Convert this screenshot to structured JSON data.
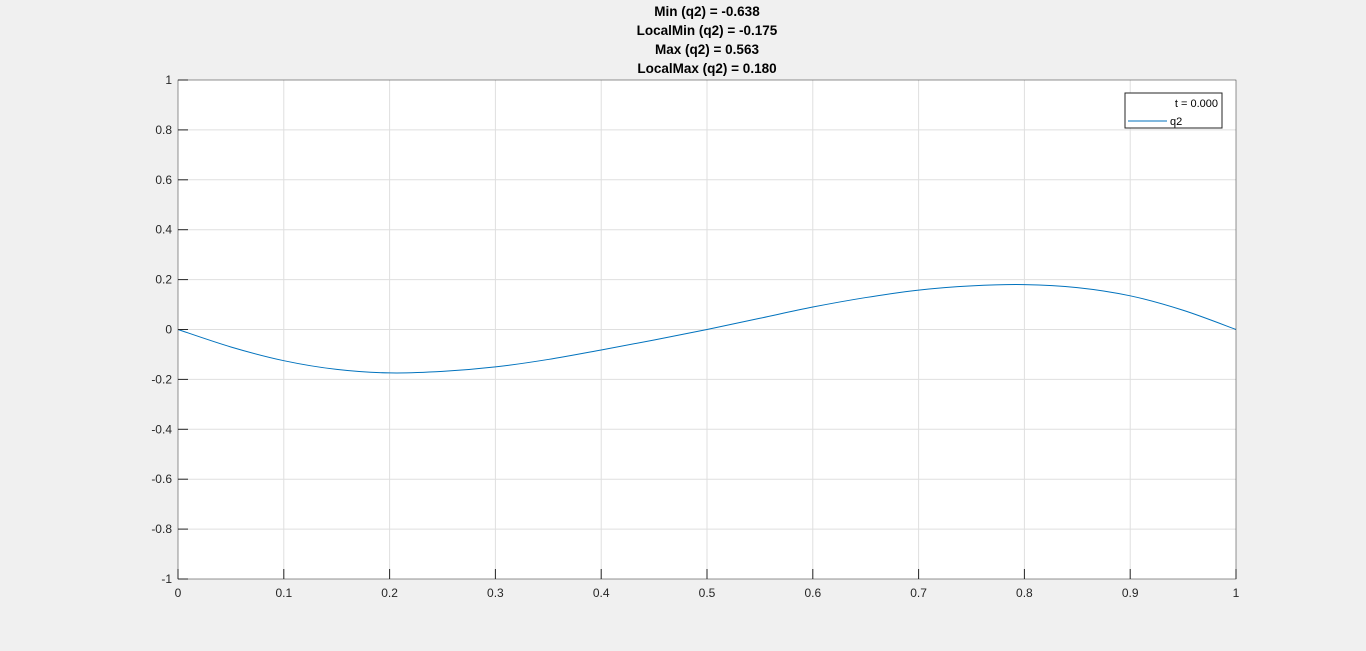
{
  "chart_data": {
    "type": "line",
    "title_lines": [
      "Min (q2) = -0.638",
      "LocalMin (q2) = -0.175",
      "Max (q2) = 0.563",
      "LocalMax (q2) = 0.180"
    ],
    "xlabel": "",
    "ylabel": "",
    "xlim": [
      0,
      1
    ],
    "ylim": [
      -1,
      1
    ],
    "xticks": [
      0,
      0.1,
      0.2,
      0.3,
      0.4,
      0.5,
      0.6,
      0.7,
      0.8,
      0.9,
      1
    ],
    "xtick_labels": [
      "0",
      "0.1",
      "0.2",
      "0.3",
      "0.4",
      "0.5",
      "0.6",
      "0.7",
      "0.8",
      "0.9",
      "1"
    ],
    "yticks": [
      -1,
      -0.8,
      -0.6,
      -0.4,
      -0.2,
      0,
      0.2,
      0.4,
      0.6,
      0.8,
      1
    ],
    "ytick_labels": [
      "-1",
      "-0.8",
      "-0.6",
      "-0.4",
      "-0.2",
      "0",
      "0.2",
      "0.4",
      "0.6",
      "0.8",
      "1"
    ],
    "grid": true,
    "legend": {
      "placement": "top-right",
      "header": "t = 0.000",
      "entries": [
        "q2"
      ]
    },
    "series": [
      {
        "name": "q2",
        "color": "#0072bd",
        "x": [
          0,
          0.05,
          0.1,
          0.15,
          0.2,
          0.25,
          0.3,
          0.35,
          0.4,
          0.45,
          0.5,
          0.55,
          0.6,
          0.65,
          0.7,
          0.75,
          0.8,
          0.85,
          0.9,
          0.95,
          1
        ],
        "y": [
          0,
          -0.07,
          -0.125,
          -0.16,
          -0.174,
          -0.168,
          -0.15,
          -0.12,
          -0.082,
          -0.042,
          0,
          0.045,
          0.09,
          0.128,
          0.158,
          0.175,
          0.18,
          0.168,
          0.135,
          0.077,
          0
        ]
      }
    ]
  }
}
